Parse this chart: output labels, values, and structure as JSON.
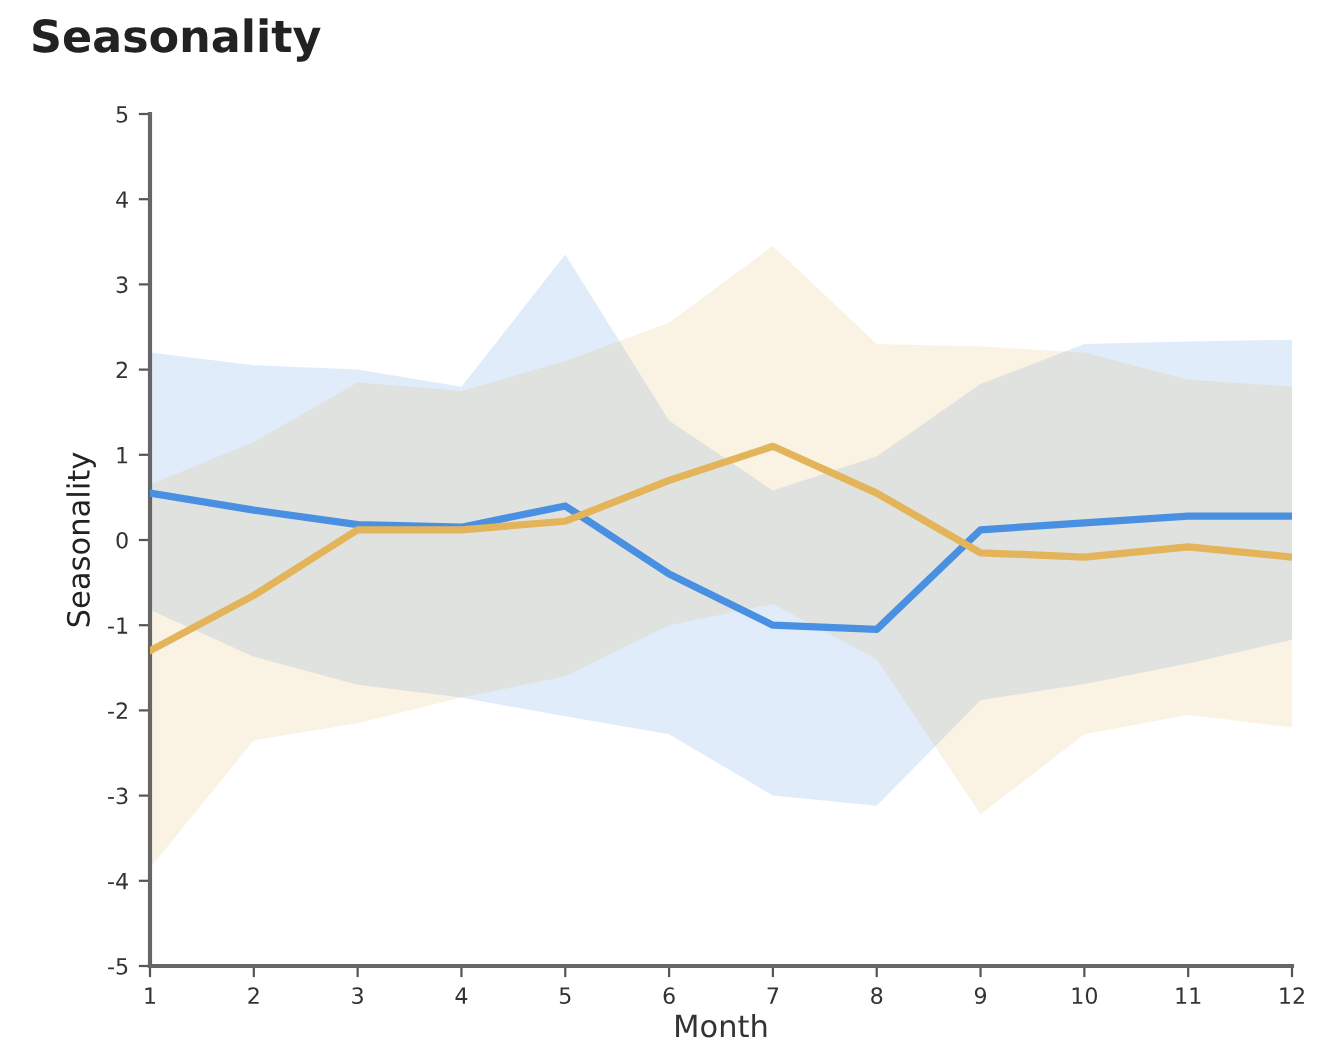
{
  "chart_data": {
    "type": "line",
    "title": "Seasonality",
    "xlabel": "Month",
    "ylabel": "Seasonality",
    "x": [
      1,
      2,
      3,
      4,
      5,
      6,
      7,
      8,
      9,
      10,
      11,
      12
    ],
    "xlim": [
      1,
      12
    ],
    "xticks": [
      1,
      2,
      3,
      4,
      5,
      6,
      7,
      8,
      9,
      10,
      11,
      12
    ],
    "ylim": [
      -5,
      5
    ],
    "yticks": [
      -5,
      -4,
      -3,
      -2,
      -1,
      0,
      1,
      2,
      3,
      4,
      5
    ],
    "grid": false,
    "marker": "none",
    "line_style": "solid",
    "series": [
      {
        "color": "#4a90e2",
        "values": [
          0.55,
          0.35,
          0.18,
          0.15,
          0.4,
          -0.4,
          -1.0,
          -1.05,
          0.12,
          0.2,
          0.28,
          0.28
        ],
        "lower": [
          -0.82,
          -1.37,
          -1.7,
          -1.85,
          -2.07,
          -2.28,
          -3.0,
          -3.12,
          -1.88,
          -1.69,
          -1.45,
          -1.17
        ],
        "upper": [
          2.2,
          2.05,
          2.0,
          1.8,
          3.35,
          1.4,
          0.58,
          0.98,
          1.83,
          2.3,
          2.33,
          2.35
        ]
      },
      {
        "color": "#e3b45a",
        "values": [
          -1.3,
          -0.65,
          0.12,
          0.12,
          0.22,
          0.7,
          1.1,
          0.55,
          -0.15,
          -0.2,
          -0.08,
          -0.2
        ],
        "lower": [
          -3.85,
          -2.35,
          -2.15,
          -1.85,
          -1.6,
          -1.0,
          -0.75,
          -1.4,
          -3.22,
          -2.28,
          -2.05,
          -2.2
        ],
        "upper": [
          0.65,
          1.15,
          1.85,
          1.75,
          2.1,
          2.55,
          3.45,
          2.3,
          2.27,
          2.2,
          1.88,
          1.8
        ]
      }
    ]
  }
}
